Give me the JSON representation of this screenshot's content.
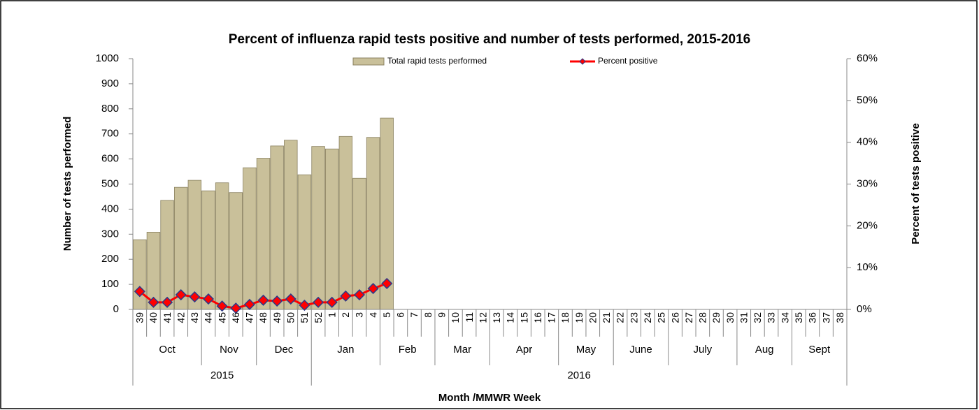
{
  "chart_data": {
    "type": "bar_line",
    "title": "Percent of influenza rapid tests positive and number of tests performed, 2015-2016",
    "x_label": "Month /MMWR Week",
    "y_label": "Number of tests performed",
    "y2_label": "Percent of tests positive",
    "categories": [
      "39",
      "40",
      "41",
      "42",
      "43",
      "44",
      "45",
      "46",
      "47",
      "48",
      "49",
      "50",
      "51",
      "52",
      "1",
      "2",
      "3",
      "4",
      "5",
      "6",
      "7",
      "8",
      "9",
      "10",
      "11",
      "12",
      "13",
      "14",
      "15",
      "16",
      "17",
      "18",
      "19",
      "20",
      "21",
      "22",
      "23",
      "24",
      "25",
      "26",
      "27",
      "28",
      "29",
      "30",
      "31",
      "32",
      "33",
      "34",
      "35",
      "36",
      "37",
      "38"
    ],
    "month_groups": [
      {
        "label": "Oct",
        "weeks": 5
      },
      {
        "label": "Nov",
        "weeks": 4
      },
      {
        "label": "Dec",
        "weeks": 4
      },
      {
        "label": "Jan",
        "weeks": 5
      },
      {
        "label": "Feb",
        "weeks": 4
      },
      {
        "label": "Mar",
        "weeks": 4
      },
      {
        "label": "Apr",
        "weeks": 5
      },
      {
        "label": "May",
        "weeks": 4
      },
      {
        "label": "June",
        "weeks": 4
      },
      {
        "label": "July",
        "weeks": 5
      },
      {
        "label": "Aug",
        "weeks": 4
      },
      {
        "label": "Sept",
        "weeks": 4
      }
    ],
    "year_groups": [
      {
        "label": "2015",
        "weeks": 13
      },
      {
        "label": "2016",
        "weeks": 39
      }
    ],
    "series": [
      {
        "name": "Total rapid tests performed",
        "type": "bar",
        "color": "#c9c09a",
        "values": [
          278,
          308,
          435,
          487,
          515,
          473,
          505,
          466,
          565,
          603,
          652,
          675,
          537,
          650,
          640,
          690,
          523,
          686,
          763,
          null,
          null,
          null,
          null,
          null,
          null,
          null,
          null,
          null,
          null,
          null,
          null,
          null,
          null,
          null,
          null,
          null,
          null,
          null,
          null,
          null,
          null,
          null,
          null,
          null,
          null,
          null,
          null,
          null,
          null,
          null,
          null,
          null
        ]
      },
      {
        "name": "Percent positive",
        "type": "line",
        "axis": "y2",
        "color": "#ff0000",
        "values": [
          4.3,
          1.7,
          1.7,
          3.5,
          3.0,
          2.5,
          0.8,
          0.3,
          1.2,
          2.2,
          2.0,
          2.5,
          1.0,
          1.7,
          1.7,
          3.2,
          3.5,
          5.0,
          6.2,
          null,
          null,
          null,
          null,
          null,
          null,
          null,
          null,
          null,
          null,
          null,
          null,
          null,
          null,
          null,
          null,
          null,
          null,
          null,
          null,
          null,
          null,
          null,
          null,
          null,
          null,
          null,
          null,
          null,
          null,
          null,
          null,
          null
        ]
      }
    ],
    "ylim": [
      0,
      1000
    ],
    "yticks": [
      0,
      100,
      200,
      300,
      400,
      500,
      600,
      700,
      800,
      900,
      1000
    ],
    "y2lim": [
      0,
      60
    ],
    "y2ticks": [
      {
        "value": 0,
        "label": "0%"
      },
      {
        "value": 10,
        "label": "10%"
      },
      {
        "value": 20,
        "label": "20%"
      },
      {
        "value": 30,
        "label": "30%"
      },
      {
        "value": 40,
        "label": "40%"
      },
      {
        "value": 50,
        "label": "50%"
      },
      {
        "value": 60,
        "label": "60%"
      }
    ],
    "legend": "top"
  }
}
